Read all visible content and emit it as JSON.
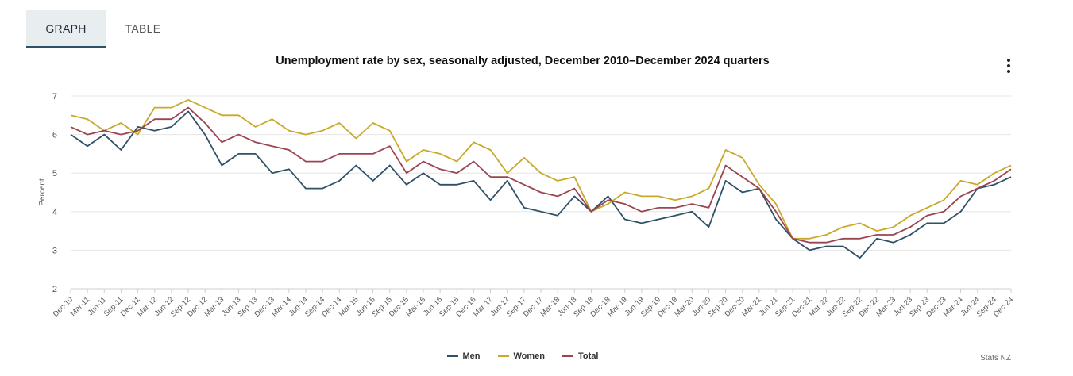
{
  "tabs": [
    {
      "label": "GRAPH"
    },
    {
      "label": "TABLE"
    }
  ],
  "chart_data": {
    "type": "line",
    "title": "Unemployment rate by sex, seasonally adjusted, December 2010–December 2024 quarters",
    "xlabel": "",
    "ylabel": "Percent",
    "ylim": [
      2,
      7
    ],
    "yticks": [
      2,
      3,
      4,
      5,
      6,
      7
    ],
    "grid": true,
    "legend_position": "bottom",
    "categories": [
      "Dec-10",
      "Mar-11",
      "Jun-11",
      "Sep-11",
      "Dec-11",
      "Mar-12",
      "Jun-12",
      "Sep-12",
      "Dec-12",
      "Mar-13",
      "Jun-13",
      "Sep-13",
      "Dec-13",
      "Mar-14",
      "Jun-14",
      "Sep-14",
      "Dec-14",
      "Mar-15",
      "Jun-15",
      "Sep-15",
      "Dec-15",
      "Mar-16",
      "Jun-16",
      "Sep-16",
      "Dec-16",
      "Mar-17",
      "Jun-17",
      "Sep-17",
      "Dec-17",
      "Mar-18",
      "Jun-18",
      "Sep-18",
      "Dec-18",
      "Mar-19",
      "Jun-19",
      "Sep-19",
      "Dec-19",
      "Mar-20",
      "Jun-20",
      "Sep-20",
      "Dec-20",
      "Mar-21",
      "Jun-21",
      "Sep-21",
      "Dec-21",
      "Mar-22",
      "Jun-22",
      "Sep-22",
      "Dec-22",
      "Mar-23",
      "Jun-23",
      "Sep-23",
      "Dec-23",
      "Mar-24",
      "Jun-24",
      "Sep-24",
      "Dec-24"
    ],
    "series": [
      {
        "name": "Men",
        "color": "#2f5168",
        "values": [
          6.0,
          5.7,
          6.0,
          5.6,
          6.2,
          6.1,
          6.2,
          6.6,
          6.0,
          5.2,
          5.5,
          5.5,
          5.0,
          5.1,
          4.6,
          4.6,
          4.8,
          5.2,
          4.8,
          5.2,
          4.7,
          5.0,
          4.7,
          4.7,
          4.8,
          4.3,
          4.8,
          4.1,
          4.0,
          3.9,
          4.4,
          4.0,
          4.4,
          3.8,
          3.7,
          3.8,
          3.9,
          4.0,
          3.6,
          4.8,
          4.5,
          4.6,
          3.8,
          3.3,
          3.0,
          3.1,
          3.1,
          2.8,
          3.3,
          3.2,
          3.4,
          3.7,
          3.7,
          4.0,
          4.6,
          4.7,
          4.9
        ]
      },
      {
        "name": "Women",
        "color": "#c8a92c",
        "values": [
          6.5,
          6.4,
          6.1,
          6.3,
          6.0,
          6.7,
          6.7,
          6.9,
          6.7,
          6.5,
          6.5,
          6.2,
          6.4,
          6.1,
          6.0,
          6.1,
          6.3,
          5.9,
          6.3,
          6.1,
          5.3,
          5.6,
          5.5,
          5.3,
          5.8,
          5.6,
          5.0,
          5.4,
          5.0,
          4.8,
          4.9,
          4.0,
          4.2,
          4.5,
          4.4,
          4.4,
          4.3,
          4.4,
          4.6,
          5.6,
          5.4,
          4.7,
          4.2,
          3.3,
          3.3,
          3.4,
          3.6,
          3.7,
          3.5,
          3.6,
          3.9,
          4.1,
          4.3,
          4.8,
          4.7,
          5.0,
          5.2
        ]
      },
      {
        "name": "Total",
        "color": "#9b4452",
        "values": [
          6.2,
          6.0,
          6.1,
          6.0,
          6.1,
          6.4,
          6.4,
          6.7,
          6.3,
          5.8,
          6.0,
          5.8,
          5.7,
          5.6,
          5.3,
          5.3,
          5.5,
          5.5,
          5.5,
          5.7,
          5.0,
          5.3,
          5.1,
          5.0,
          5.3,
          4.9,
          4.9,
          4.7,
          4.5,
          4.4,
          4.6,
          4.0,
          4.3,
          4.2,
          4.0,
          4.1,
          4.1,
          4.2,
          4.1,
          5.2,
          4.9,
          4.6,
          4.0,
          3.3,
          3.2,
          3.2,
          3.3,
          3.3,
          3.4,
          3.4,
          3.6,
          3.9,
          4.0,
          4.4,
          4.6,
          4.8,
          5.1
        ]
      }
    ]
  },
  "credit": "Stats NZ"
}
